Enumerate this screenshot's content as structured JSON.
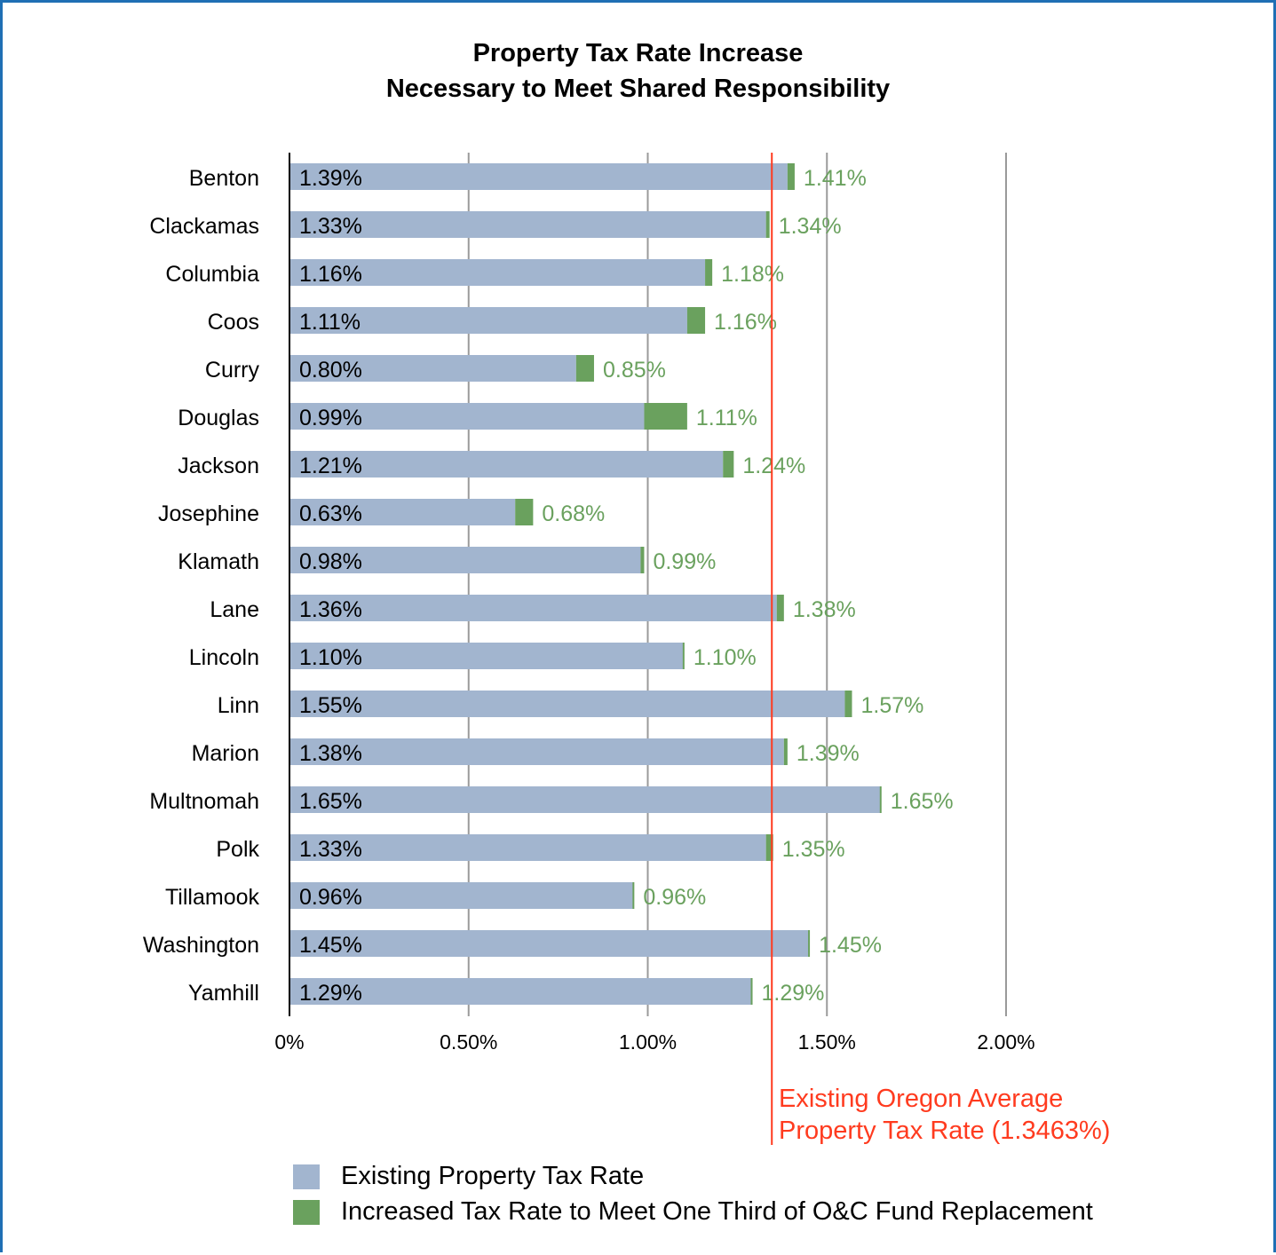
{
  "title_lines": [
    "Property Tax Rate Increase",
    "Necessary to Meet Shared Responsibility"
  ],
  "colors": {
    "existing": "#a2b5cf",
    "increased": "#6aa15e",
    "increased_label": "#6aa15e",
    "average_line": "#ff3b1f",
    "gridline": "#9a9a9a",
    "frame": "#1f6fb4"
  },
  "chart_data": {
    "type": "bar",
    "orientation": "horizontal",
    "stacked": true,
    "categories": [
      "Benton",
      "Clackamas",
      "Columbia",
      "Coos",
      "Curry",
      "Douglas",
      "Jackson",
      "Josephine",
      "Klamath",
      "Lane",
      "Lincoln",
      "Linn",
      "Marion",
      "Multnomah",
      "Polk",
      "Tillamook",
      "Washington",
      "Yamhill"
    ],
    "existing_labels": [
      "1.39%",
      "1.33%",
      "1.16%",
      "1.11%",
      "0.80%",
      "0.99%",
      "1.21%",
      "0.63%",
      "0.98%",
      "1.36%",
      "1.10%",
      "1.55%",
      "1.38%",
      "1.65%",
      "1.33%",
      "0.96%",
      "1.45%",
      "1.29%"
    ],
    "total_labels": [
      "1.41%",
      "1.34%",
      "1.18%",
      "1.16%",
      "0.85%",
      "1.11%",
      "1.24%",
      "0.68%",
      "0.99%",
      "1.38%",
      "1.10%",
      "1.57%",
      "1.39%",
      "1.65%",
      "1.35%",
      "0.96%",
      "1.45%",
      "1.29%"
    ],
    "series": [
      {
        "name": "Existing Property Tax Rate",
        "values": [
          1.39,
          1.33,
          1.16,
          1.11,
          0.8,
          0.99,
          1.21,
          0.63,
          0.98,
          1.36,
          1.1,
          1.55,
          1.38,
          1.65,
          1.33,
          0.96,
          1.45,
          1.29
        ]
      },
      {
        "name": "Increased Tax Rate to Meet One Third of O&C Fund Replacement",
        "values": [
          0.02,
          0.01,
          0.02,
          0.05,
          0.05,
          0.12,
          0.03,
          0.05,
          0.01,
          0.02,
          0.0,
          0.02,
          0.01,
          0.0,
          0.02,
          0.0,
          0.0,
          0.0
        ]
      }
    ],
    "xlim": [
      0,
      2.0
    ],
    "x_ticks": [
      0,
      0.5,
      1.0,
      1.5,
      2.0
    ],
    "x_tick_labels": [
      "0%",
      "0.50%",
      "1.00%",
      "1.50%",
      "2.00%"
    ],
    "grid": true,
    "reference_line": {
      "value": 1.3463,
      "label_lines": [
        "Existing Oregon Average",
        "Property Tax Rate (1.3463%)"
      ]
    },
    "legend": [
      "Existing Property Tax Rate",
      "Increased Tax Rate to Meet One Third of O&C Fund Replacement"
    ],
    "legend_position": "bottom"
  }
}
